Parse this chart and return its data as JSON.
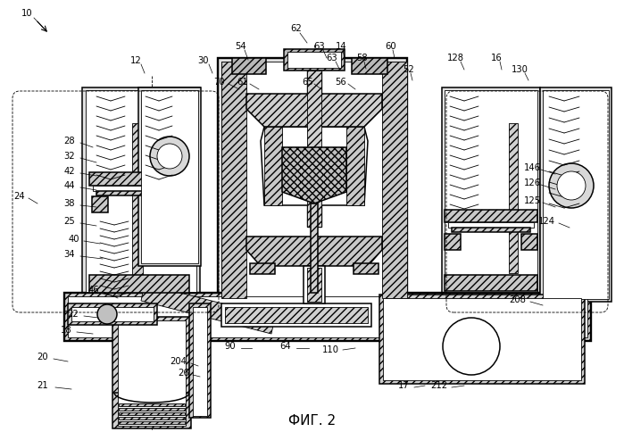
{
  "fig_label": "ФИГ. 2",
  "background_color": "#ffffff",
  "line_color": "#000000",
  "light_gray": "#d0d0d0",
  "mid_gray": "#a0a0a0",
  "dark_gray": "#606060"
}
